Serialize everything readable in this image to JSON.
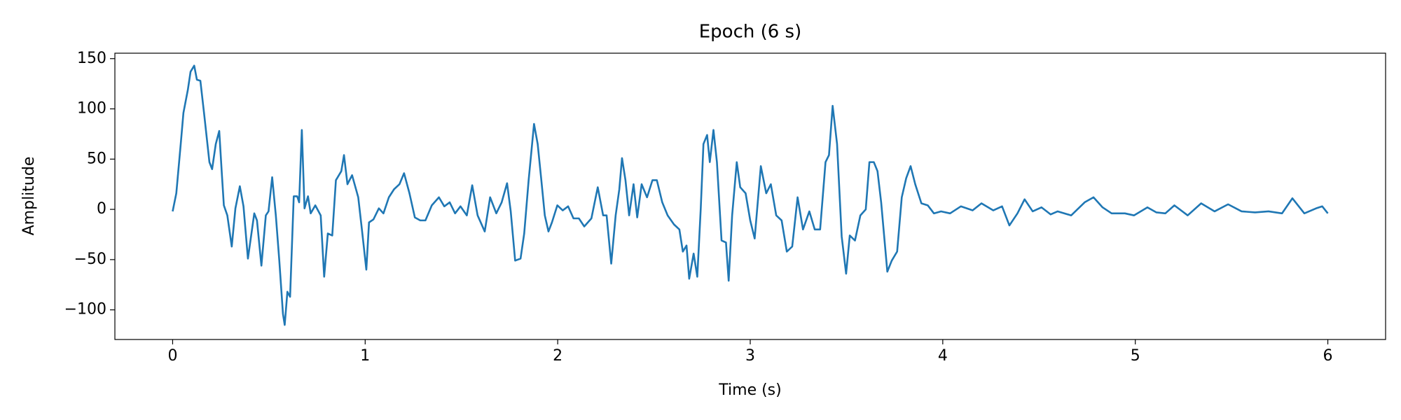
{
  "chart_data": {
    "type": "line",
    "title": "Epoch (6 s)",
    "x_label": "Time (s)",
    "y_label": "Amplitude",
    "color": "#1f77b4",
    "grid": false,
    "xlim": [
      -0.3,
      6.3
    ],
    "ylim": [
      -129.5,
      155.4
    ],
    "xticks": [
      0,
      1,
      2,
      3,
      4,
      5,
      6
    ],
    "yticks": [
      {
        "value": -100,
        "label": "−100"
      },
      {
        "value": -50,
        "label": "−50"
      },
      0,
      50,
      100,
      150
    ],
    "x": [
      0,
      0.019,
      0.042,
      0.056,
      0.079,
      0.093,
      0.112,
      0.126,
      0.144,
      0.163,
      0.191,
      0.205,
      0.224,
      0.242,
      0.256,
      0.266,
      0.284,
      0.307,
      0.326,
      0.349,
      0.368,
      0.391,
      0.424,
      0.438,
      0.461,
      0.484,
      0.498,
      0.517,
      0.536,
      0.554,
      0.573,
      0.582,
      0.596,
      0.61,
      0.629,
      0.647,
      0.657,
      0.671,
      0.685,
      0.703,
      0.717,
      0.741,
      0.769,
      0.787,
      0.806,
      0.829,
      0.848,
      0.876,
      0.89,
      0.908,
      0.932,
      0.964,
      0.983,
      1.006,
      1.02,
      1.043,
      1.071,
      1.095,
      1.123,
      1.15,
      1.178,
      1.202,
      1.23,
      1.258,
      1.286,
      1.313,
      1.346,
      1.383,
      1.411,
      1.439,
      1.467,
      1.495,
      1.528,
      1.556,
      1.584,
      1.621,
      1.649,
      1.681,
      1.709,
      1.737,
      1.756,
      1.779,
      1.807,
      1.826,
      1.849,
      1.877,
      1.896,
      1.914,
      1.933,
      1.952,
      1.97,
      1.998,
      2.026,
      2.054,
      2.082,
      2.11,
      2.138,
      2.175,
      2.208,
      2.236,
      2.254,
      2.278,
      2.301,
      2.32,
      2.334,
      2.352,
      2.371,
      2.394,
      2.413,
      2.436,
      2.464,
      2.492,
      2.515,
      2.543,
      2.571,
      2.604,
      2.632,
      2.65,
      2.669,
      2.683,
      2.706,
      2.725,
      2.743,
      2.757,
      2.776,
      2.79,
      2.809,
      2.827,
      2.851,
      2.874,
      2.888,
      2.906,
      2.93,
      2.948,
      2.976,
      3.0,
      3.023,
      3.055,
      3.083,
      3.107,
      3.135,
      3.163,
      3.19,
      3.218,
      3.246,
      3.274,
      3.307,
      3.335,
      3.363,
      3.391,
      3.409,
      3.428,
      3.451,
      3.475,
      3.498,
      3.517,
      3.544,
      3.572,
      3.6,
      3.619,
      3.642,
      3.661,
      3.68,
      3.712,
      3.735,
      3.763,
      3.787,
      3.81,
      3.833,
      3.857,
      3.889,
      3.922,
      3.954,
      3.991,
      4.038,
      4.094,
      4.155,
      4.201,
      4.262,
      4.308,
      4.346,
      4.388,
      4.425,
      4.467,
      4.513,
      4.56,
      4.597,
      4.667,
      4.737,
      4.783,
      4.83,
      4.877,
      4.946,
      4.993,
      5.063,
      5.109,
      5.156,
      5.203,
      5.272,
      5.342,
      5.412,
      5.482,
      5.552,
      5.622,
      5.692,
      5.762,
      5.816,
      5.878,
      5.939,
      5.971,
      6.0
    ],
    "values": [
      -2,
      16,
      65,
      96,
      119,
      137,
      143,
      129,
      128,
      96,
      47,
      40,
      65,
      78,
      34,
      4,
      -6,
      -37,
      1,
      23,
      3,
      -49,
      -4,
      -11,
      -56,
      -6,
      -2,
      32,
      -6,
      -51,
      -104,
      -115,
      -82,
      -87,
      13,
      13,
      7,
      79,
      1,
      13,
      -4,
      4,
      -6,
      -67,
      -24,
      -26,
      29,
      38,
      54,
      25,
      34,
      12,
      -20,
      -60,
      -13,
      -10,
      1,
      -4,
      12,
      20,
      25,
      36,
      16,
      -8,
      -11,
      -11,
      4,
      12,
      3,
      7,
      -4,
      3,
      -6,
      24,
      -6,
      -22,
      12,
      -4,
      7,
      26,
      -2,
      -51,
      -49,
      -24,
      29,
      85,
      65,
      31,
      -6,
      -22,
      -13,
      4,
      -1,
      3,
      -9,
      -9,
      -17,
      -9,
      22,
      -6,
      -6,
      -54,
      -6,
      20,
      51,
      29,
      -6,
      25,
      -8,
      25,
      12,
      29,
      29,
      7,
      -6,
      -15,
      -20,
      -42,
      -36,
      -69,
      -44,
      -67,
      1,
      65,
      74,
      47,
      79,
      47,
      -31,
      -33,
      -71,
      -6,
      47,
      22,
      16,
      -11,
      -29,
      43,
      16,
      25,
      -6,
      -11,
      -42,
      -37,
      12,
      -20,
      -2,
      -20,
      -20,
      47,
      54,
      103,
      65,
      -27,
      -64,
      -26,
      -31,
      -6,
      0,
      47,
      47,
      38,
      7,
      -62,
      -51,
      -42,
      12,
      31,
      43,
      25,
      6,
      4,
      -4,
      -2,
      -4,
      3,
      -1,
      6,
      -1,
      3,
      -16,
      -4,
      10,
      -2,
      2,
      -5,
      -2,
      -6,
      7,
      12,
      2,
      -4,
      -4,
      -6,
      2,
      -3,
      -4,
      4,
      -6,
      6,
      -2,
      5,
      -2,
      -3,
      -2,
      -4,
      11,
      -4,
      1,
      3,
      -4
    ]
  }
}
